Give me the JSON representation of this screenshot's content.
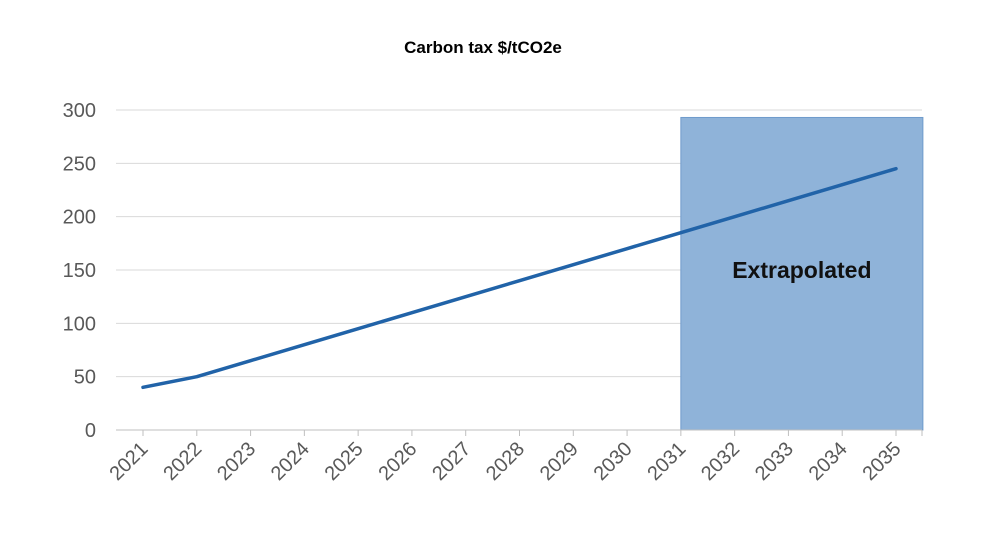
{
  "chart_data": {
    "type": "line",
    "title": "Carbon tax $/tCO2e",
    "xlabel": "",
    "ylabel": "",
    "x": [
      "2021",
      "2022",
      "2023",
      "2024",
      "2025",
      "2026",
      "2027",
      "2028",
      "2029",
      "2030",
      "2031",
      "2032",
      "2033",
      "2034",
      "2035"
    ],
    "series": [
      {
        "values": [
          40,
          50,
          65,
          80,
          95,
          110,
          125,
          140,
          155,
          170,
          185,
          200,
          215,
          230,
          245
        ]
      }
    ],
    "ylim": [
      0,
      300
    ],
    "yticks": [
      0,
      50,
      100,
      150,
      200,
      250,
      300
    ],
    "grid": true,
    "legend": "none",
    "annotation": {
      "label": "Extrapolated",
      "x_start": "2031",
      "x_end": "2035",
      "y_top": 293
    },
    "colors": {
      "line": "#2163a8",
      "region": "#8fb3d9",
      "region_border": "#6f9bcc",
      "grid": "#d9d9d9",
      "axis": "#bfbfbf"
    }
  }
}
